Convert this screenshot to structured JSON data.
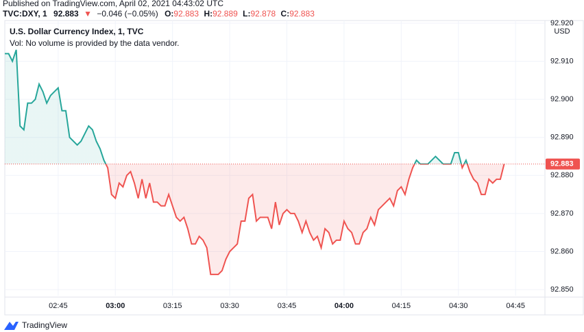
{
  "header": {
    "published": "Published on TradingView.com, April 02, 2021 04:43:02 UTC",
    "symbol": "TVC:DXY, 1",
    "price": "92.883",
    "arrow": "▼",
    "change": "−0.046 (−0.05%)",
    "o_label": "O:",
    "o": "92.883",
    "h_label": "H:",
    "h": "92.889",
    "l_label": "L:",
    "l": "92.878",
    "c_label": "C:",
    "c": "92.883"
  },
  "chart_data": {
    "type": "baseline",
    "title": "U.S. Dollar Currency Index, 1, TVC",
    "subtitle": "Vol: No volume is provided by the data vendor.",
    "currency": "USD",
    "baseline": 92.883,
    "color_above": "#26a69a",
    "color_below": "#ef5350",
    "grid": true,
    "xlim": [
      151,
      292.7
    ],
    "xticks": [
      {
        "value": 165,
        "label": "02:45"
      },
      {
        "value": 180,
        "label": "03:00"
      },
      {
        "value": 195,
        "label": "03:15"
      },
      {
        "value": 210,
        "label": "03:30"
      },
      {
        "value": 225,
        "label": "03:45"
      },
      {
        "value": 240,
        "label": "04:00"
      },
      {
        "value": 255,
        "label": "04:15"
      },
      {
        "value": 270,
        "label": "04:30"
      },
      {
        "value": 285,
        "label": "04:45"
      }
    ],
    "ylim": [
      92.8484,
      92.9207
    ],
    "yticks": [
      {
        "value": 92.85,
        "label": "92.850"
      },
      {
        "value": 92.86,
        "label": "92.860"
      },
      {
        "value": 92.87,
        "label": "92.870"
      },
      {
        "value": 92.88,
        "label": "92.880"
      },
      {
        "value": 92.89,
        "label": "92.890"
      },
      {
        "value": 92.9,
        "label": "92.900"
      },
      {
        "value": 92.91,
        "label": "92.910"
      },
      {
        "value": 92.92,
        "label": "92.920"
      }
    ],
    "x": [
      151,
      152,
      153,
      154,
      155,
      156,
      157,
      158,
      159,
      160,
      161,
      162,
      163,
      164,
      165,
      166,
      167,
      168,
      169,
      170,
      171,
      172,
      173,
      174,
      175,
      176,
      177,
      178,
      179,
      180,
      181,
      182,
      183,
      184,
      185,
      186,
      187,
      188,
      189,
      190,
      191,
      192,
      193,
      194,
      195,
      196,
      197,
      198,
      199,
      200,
      201,
      202,
      203,
      204,
      205,
      206,
      207,
      208,
      209,
      210,
      211,
      212,
      213,
      214,
      215,
      216,
      217,
      218,
      219,
      220,
      221,
      222,
      223,
      224,
      225,
      226,
      227,
      228,
      229,
      230,
      231,
      232,
      233,
      234,
      235,
      236,
      237,
      238,
      239,
      240,
      241,
      242,
      243,
      244,
      245,
      246,
      247,
      248,
      249,
      250,
      251,
      252,
      253,
      254,
      255,
      256,
      257,
      258,
      259,
      260,
      261,
      262,
      263,
      264,
      265,
      266,
      267,
      268,
      269,
      270,
      271,
      272,
      273,
      274,
      275,
      276,
      277,
      278,
      279,
      280,
      281,
      282
    ],
    "values": [
      92.912,
      92.912,
      92.91,
      92.913,
      92.893,
      92.892,
      92.899,
      92.899,
      92.9,
      92.904,
      92.902,
      92.899,
      92.901,
      92.902,
      92.903,
      92.897,
      92.897,
      92.89,
      92.889,
      92.888,
      92.889,
      92.891,
      92.893,
      92.892,
      92.889,
      92.887,
      92.884,
      92.882,
      92.875,
      92.874,
      92.878,
      92.877,
      92.88,
      92.881,
      92.878,
      92.874,
      92.879,
      92.874,
      92.878,
      92.873,
      92.873,
      92.872,
      92.872,
      92.875,
      92.872,
      92.869,
      92.868,
      92.869,
      92.866,
      92.862,
      92.862,
      92.864,
      92.863,
      92.861,
      92.854,
      92.854,
      92.854,
      92.855,
      92.858,
      92.86,
      92.861,
      92.862,
      92.868,
      92.868,
      92.874,
      92.875,
      92.868,
      92.869,
      92.869,
      92.869,
      92.866,
      92.873,
      92.867,
      92.87,
      92.871,
      92.87,
      92.87,
      92.868,
      92.865,
      92.868,
      92.865,
      92.863,
      92.864,
      92.861,
      92.866,
      92.865,
      92.862,
      92.863,
      92.863,
      92.868,
      92.866,
      92.865,
      92.862,
      92.862,
      92.865,
      92.866,
      92.869,
      92.867,
      92.871,
      92.872,
      92.873,
      92.874,
      92.872,
      92.876,
      92.877,
      92.875,
      92.879,
      92.882,
      92.884,
      92.883,
      92.883,
      92.883,
      92.884,
      92.885,
      92.884,
      92.883,
      92.883,
      92.883,
      92.886,
      92.886,
      92.882,
      92.884,
      92.881,
      92.879,
      92.878,
      92.875,
      92.875,
      92.879,
      92.878,
      92.879,
      92.879,
      92.883
    ]
  },
  "footer": {
    "brand": "TradingView"
  }
}
